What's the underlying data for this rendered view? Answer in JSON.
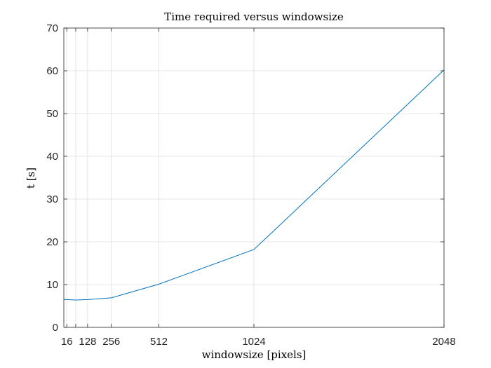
{
  "chart_data": {
    "type": "line",
    "title": "Time required versus windowsize",
    "xlabel": "windowsize [pixels]",
    "ylabel": "t [s]",
    "xlim": [
      0,
      2048
    ],
    "ylim": [
      0,
      70
    ],
    "grid": true,
    "x_ticks": [
      16,
      64,
      128,
      256,
      512,
      1024,
      2048
    ],
    "x_tick_labels": [
      "16",
      "",
      "128",
      "256",
      "512",
      "1024",
      "2048"
    ],
    "y_ticks": [
      0,
      10,
      20,
      30,
      40,
      50,
      60,
      70
    ],
    "y_tick_labels": [
      "0",
      "10",
      "20",
      "30",
      "40",
      "50",
      "60",
      "70"
    ],
    "series": [
      {
        "color": "#0072BD",
        "x": [
          0,
          16,
          64,
          128,
          256,
          512,
          1024,
          2048
        ],
        "y": [
          6.5,
          6.5,
          6.4,
          6.5,
          6.9,
          10.1,
          18.2,
          60.2
        ]
      }
    ]
  }
}
